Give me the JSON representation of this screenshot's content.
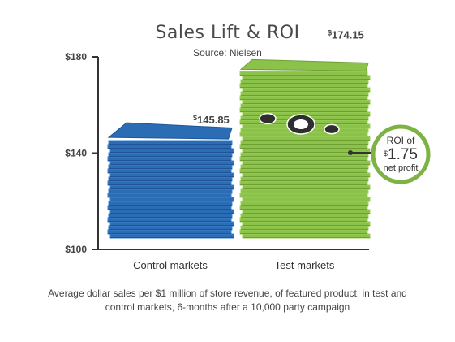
{
  "chart_data": {
    "type": "bar",
    "title": "Sales Lift & ROI",
    "subtitle": "Source: Nielsen",
    "categories": [
      "Control markets",
      "Test markets"
    ],
    "values": [
      145.85,
      174.15
    ],
    "value_labels": [
      {
        "currency": "$",
        "amount": "145.85"
      },
      {
        "currency": "$",
        "amount": "174.15"
      }
    ],
    "ylim": [
      100,
      180
    ],
    "yticks": [
      100,
      140,
      180
    ],
    "ytick_labels": [
      "$100",
      "$140",
      "$180"
    ],
    "grid": false,
    "colors": [
      "#2b6db5",
      "#8bc34a"
    ],
    "annotation": {
      "line1": "ROI of",
      "currency": "$",
      "amount": "1.75",
      "line3": "net profit",
      "ring_color": "#7cb342"
    },
    "caption": "Average dollar sales per $1 million of store revenue, of featured product, in test and control markets, 6-months after a 10,000 party campaign"
  }
}
